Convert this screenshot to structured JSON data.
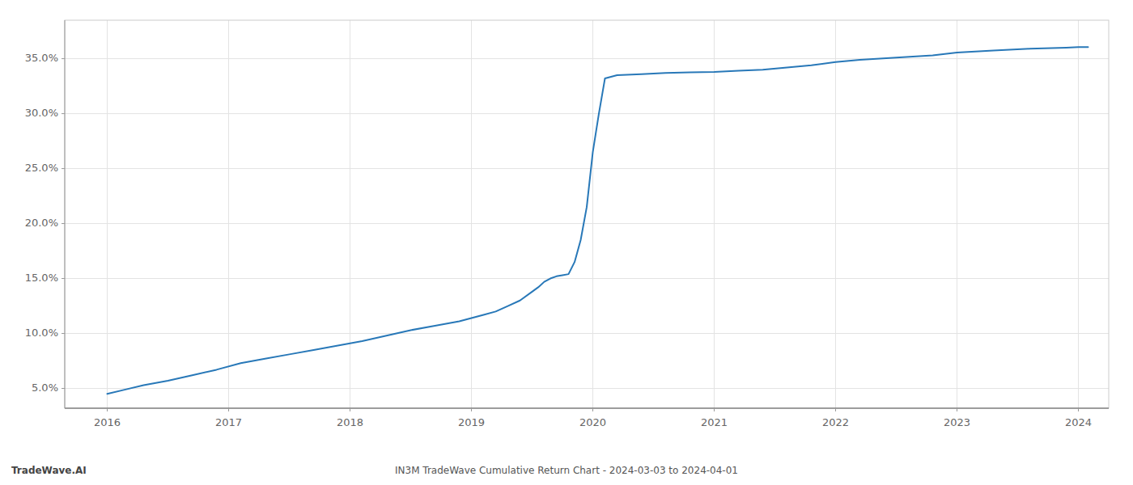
{
  "chart_data": {
    "type": "line",
    "title": "IN3M TradeWave Cumulative Return Chart - 2024-03-03 to 2024-04-01",
    "annotations": [
      "TradeWave.AI"
    ],
    "x": [
      2016.0,
      2016.15,
      2016.3,
      2016.5,
      2016.7,
      2016.9,
      2017.1,
      2017.3,
      2017.5,
      2017.7,
      2017.9,
      2018.1,
      2018.3,
      2018.5,
      2018.7,
      2018.9,
      2019.0,
      2019.1,
      2019.2,
      2019.3,
      2019.4,
      2019.5,
      2019.55,
      2019.6,
      2019.65,
      2019.7,
      2019.75,
      2019.8,
      2019.85,
      2019.9,
      2019.95,
      2020.0,
      2020.05,
      2020.1,
      2020.2,
      2020.4,
      2020.6,
      2020.8,
      2021.0,
      2021.2,
      2021.4,
      2021.6,
      2021.8,
      2022.0,
      2022.2,
      2022.5,
      2022.8,
      2023.0,
      2023.3,
      2023.6,
      2023.9,
      2024.0,
      2024.08
    ],
    "values": [
      4.5,
      4.9,
      5.3,
      5.7,
      6.2,
      6.7,
      7.3,
      7.7,
      8.1,
      8.5,
      8.9,
      9.3,
      9.8,
      10.3,
      10.7,
      11.1,
      11.4,
      11.7,
      12.0,
      12.5,
      13.0,
      13.8,
      14.2,
      14.7,
      15.0,
      15.2,
      15.3,
      15.4,
      16.5,
      18.5,
      21.5,
      26.5,
      30.0,
      33.2,
      33.5,
      33.6,
      33.7,
      33.75,
      33.8,
      33.9,
      34.0,
      34.2,
      34.4,
      34.7,
      34.9,
      35.1,
      35.3,
      35.55,
      35.75,
      35.9,
      36.0,
      36.05,
      36.05
    ],
    "color": "#2878b8",
    "xlim": [
      2015.65,
      2024.25
    ],
    "ylim": [
      3.2,
      38.5
    ],
    "xticks": [
      2016,
      2017,
      2018,
      2019,
      2020,
      2021,
      2022,
      2023,
      2024
    ],
    "yticks": [
      {
        "value": 5.0,
        "label": "5.0%"
      },
      {
        "value": 10.0,
        "label": "10.0%"
      },
      {
        "value": 15.0,
        "label": "15.0%"
      },
      {
        "value": 20.0,
        "label": "20.0%"
      },
      {
        "value": 25.0,
        "label": "25.0%"
      },
      {
        "value": 30.0,
        "label": "30.0%"
      },
      {
        "value": 35.0,
        "label": "35.0%"
      }
    ],
    "grid": true
  }
}
